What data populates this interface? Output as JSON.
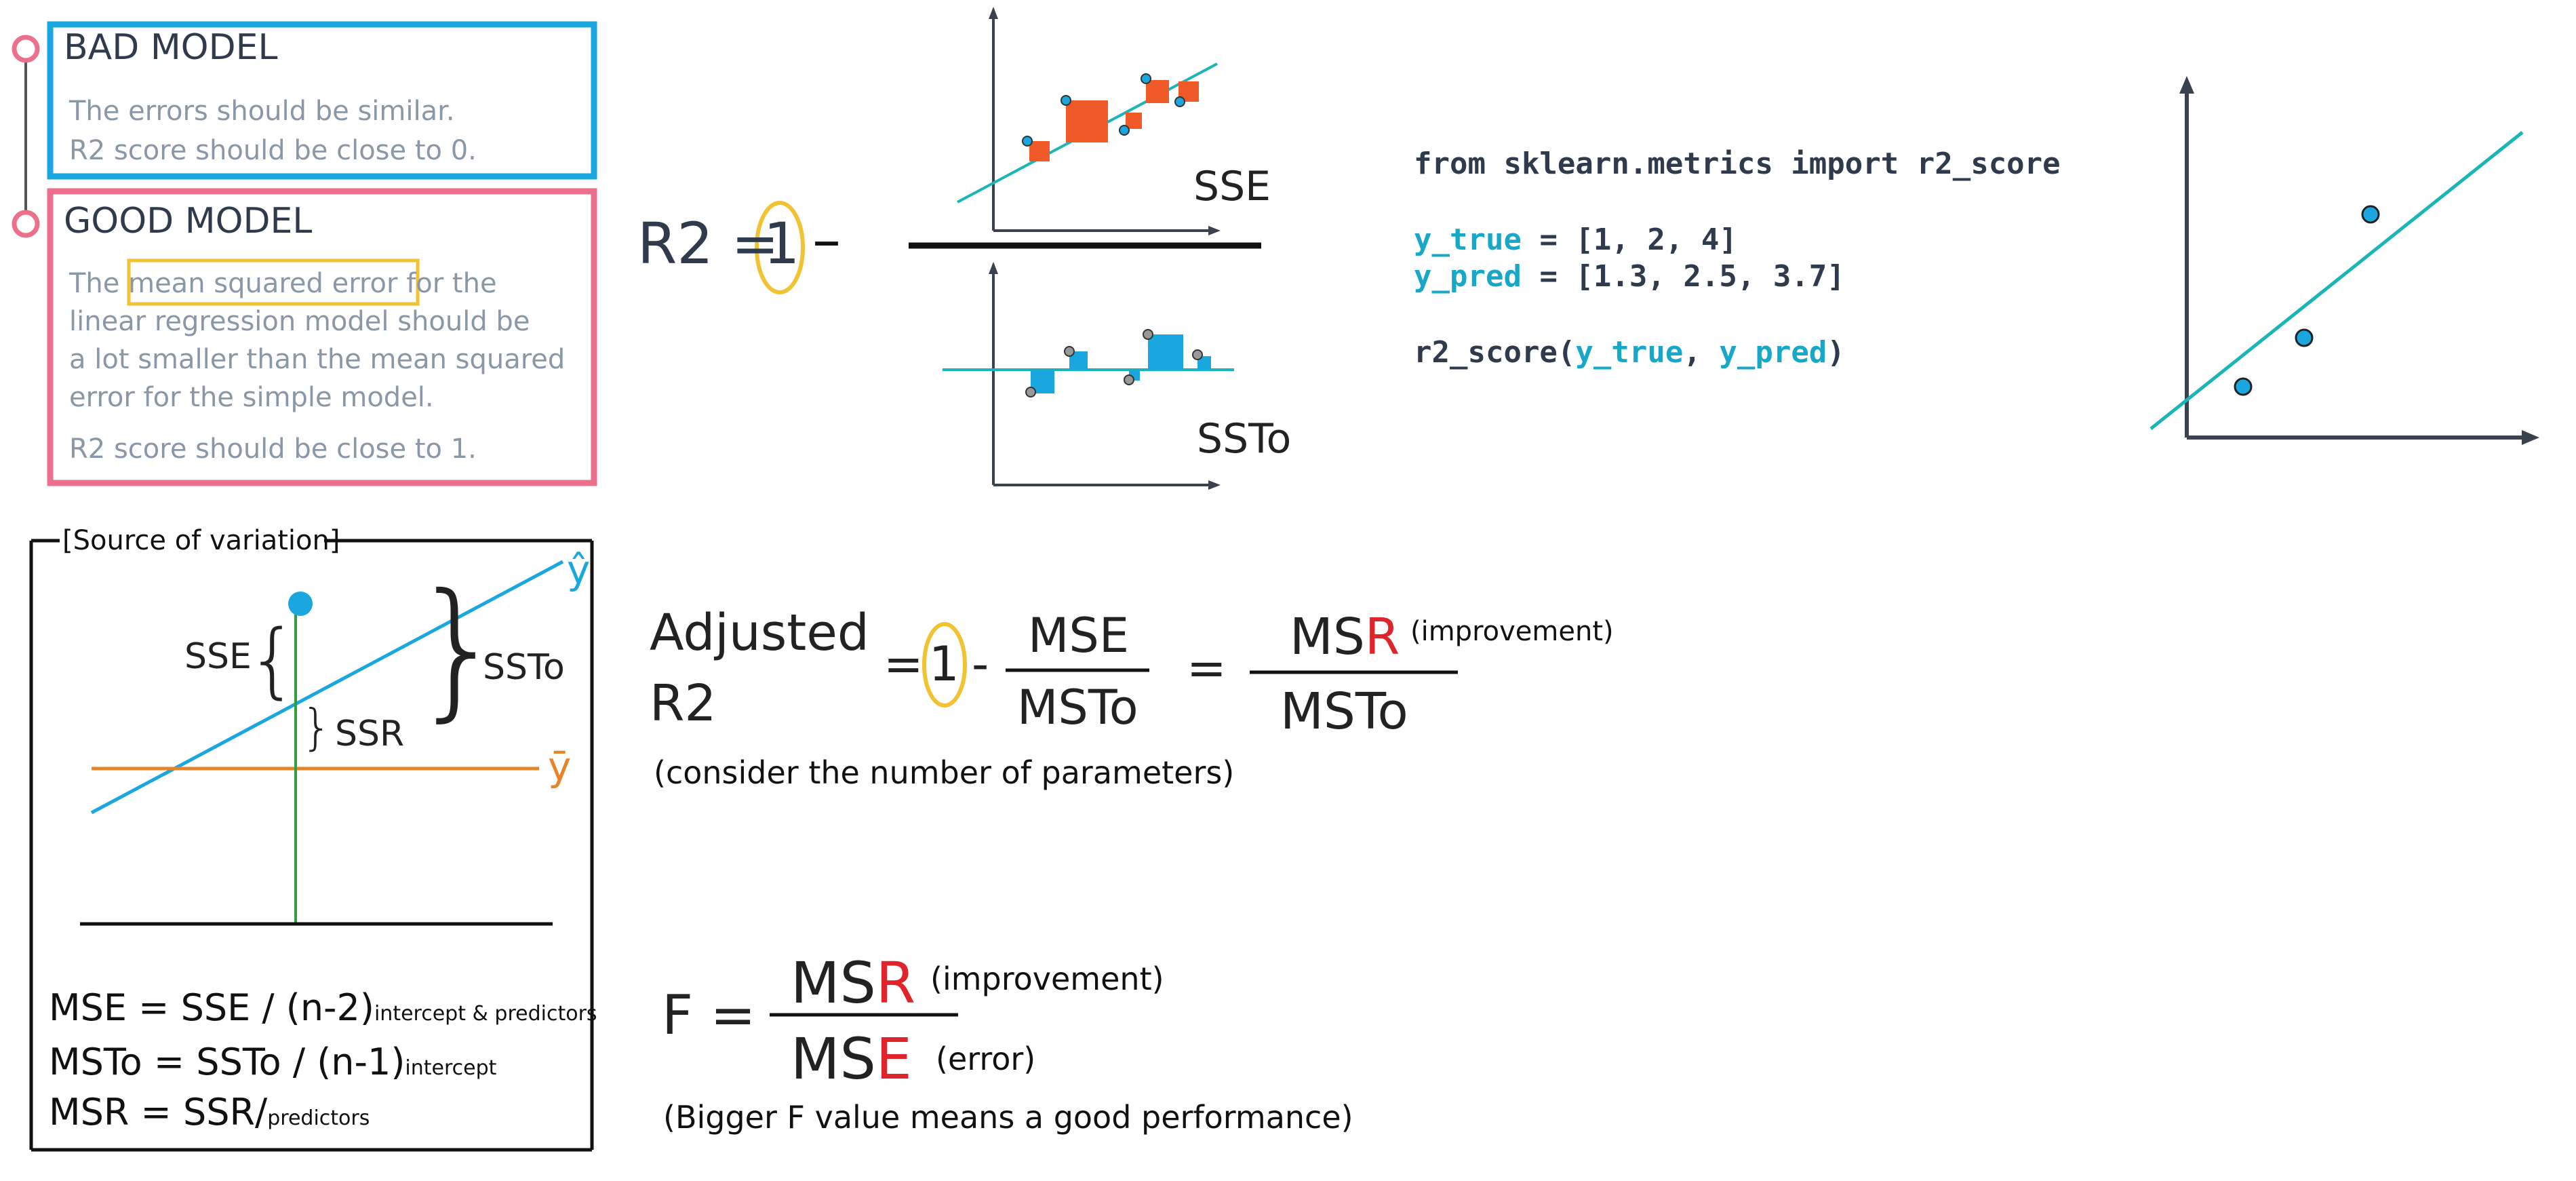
{
  "colors": {
    "blue": "#1aa7e0",
    "pink": "#ec6f8d",
    "yellow": "#f1c232",
    "orange": "#f05a28",
    "teal": "#1bb5b8",
    "red": "#e0242b",
    "green": "#2e9e3e"
  },
  "bad_model": {
    "title": "BAD MODEL",
    "line1": "The errors should be similar.",
    "line2": "R2 score should be close to 0."
  },
  "good_model": {
    "title": "GOOD MODEL",
    "line1_pre": "The ",
    "line1_highlight": "mean squared error",
    "line1_post": " for the",
    "line2": "linear regression model should be",
    "line3": "a lot smaller than the mean squared",
    "line4": "error for the simple model.",
    "line5": "R2 score should be close to 1."
  },
  "r2_formula": {
    "lhs": "R2 =",
    "one": "1",
    "minus": "–",
    "sse_label": "SSE",
    "ssto_label": "SSTo"
  },
  "code": {
    "line1": "from sklearn.metrics import r2_score",
    "y_true_var": "y_true",
    "y_true_rest": " = [1, 2, 4]",
    "y_pred_var": "y_pred",
    "y_pred_rest": " = [1.3, 2.5, 3.7]",
    "call_pre": "r2_score(",
    "call_arg1": "y_true",
    "call_sep": ", ",
    "call_arg2": "y_pred",
    "call_post": ")"
  },
  "variation": {
    "legend": "[Source of variation]",
    "yhat": "ŷ",
    "ybar": "ȳ",
    "sse": "SSE",
    "ssr": "SSR",
    "ssto": "SSTo",
    "mse_main": "MSE = SSE / (n-2)",
    "mse_sub": "intercept & predictors",
    "msto_main": "MSTo = SSTo / (n-1)",
    "msto_sub": "intercept",
    "msr_main": "MSR = SSR/",
    "msr_sub": "predictors"
  },
  "adjusted": {
    "label_line1": "Adjusted",
    "label_line2": "R2",
    "eq1": "=",
    "one": "1",
    "minus": "-",
    "mse": "MSE",
    "msto": "MSTo",
    "eq2": "=",
    "msr_ms": "MS",
    "msr_r": "R",
    "msto2": "MSTo",
    "improvement": "(improvement)",
    "note": "(consider the number of parameters)"
  },
  "f_stat": {
    "lhs": "F =",
    "num_ms": "MS",
    "num_r": "R",
    "num_note": "(improvement)",
    "den_ms": "MS",
    "den_e": "E",
    "den_note": "(error)",
    "note": "(Bigger F value means a good performance)"
  }
}
